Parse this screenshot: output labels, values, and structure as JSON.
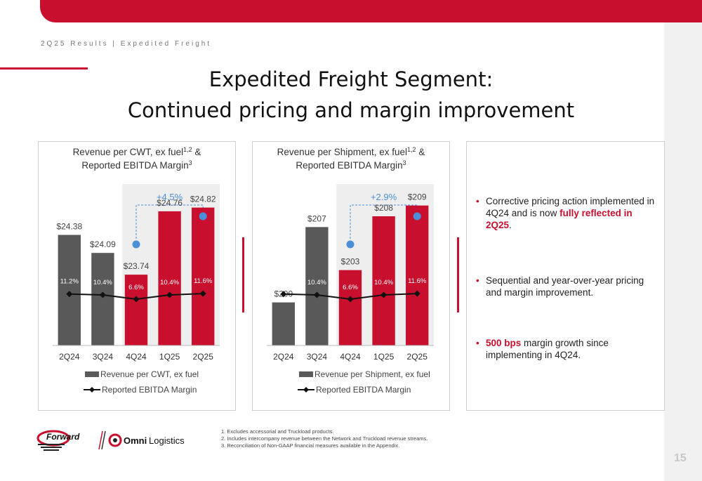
{
  "header": {
    "breadcrumb": "2Q25 Results | Expedited Freight",
    "title_line1": "Expedited Freight Segment:",
    "title_line2": "Continued pricing and margin improvement"
  },
  "colors": {
    "brand_red": "#c8102e",
    "bar_gray": "#595959",
    "highlight_blue": "#4a90d9",
    "shade": "#eeeeee"
  },
  "chart_data": [
    {
      "type": "bar",
      "title_line1": "Revenue per CWT, ex fuel",
      "title_line1_sup": "1,2",
      "title_line1_tail": " &",
      "title_line2": "Reported EBITDA Margin",
      "title_line2_sup": "3",
      "categories": [
        "2Q24",
        "3Q24",
        "4Q24",
        "1Q25",
        "2Q25"
      ],
      "series": [
        {
          "name": "Revenue per CWT, ex fuel",
          "kind": "bar",
          "values": [
            24.38,
            24.09,
            23.74,
            24.76,
            24.82
          ],
          "labels": [
            "$24.38",
            "$24.09",
            "$23.74",
            "$24.76",
            "$24.82"
          ],
          "colors": [
            "#595959",
            "#595959",
            "#c8102e",
            "#c8102e",
            "#c8102e"
          ]
        },
        {
          "name": "Reported EBITDA Margin",
          "kind": "line",
          "values": [
            11.2,
            10.4,
            6.6,
            10.4,
            11.6
          ],
          "labels": [
            "11.2%",
            "10.4%",
            "6.6%",
            "10.4%",
            "11.6%"
          ]
        }
      ],
      "annotation": "+4.5%",
      "ylim": [
        22.6,
        25.2
      ],
      "margin_ylim": [
        -35,
        110
      ],
      "bar_gap": 0.15
    },
    {
      "type": "bar",
      "title_line1": "Revenue per Shipment, ex fuel",
      "title_line1_sup": "1,2",
      "title_line1_tail": " &",
      "title_line2": "Reported EBITDA Margin",
      "title_line2_sup": "3",
      "categories": [
        "2Q24",
        "3Q24",
        "4Q24",
        "1Q25",
        "2Q25"
      ],
      "series": [
        {
          "name": "Revenue per Shipment, ex fuel",
          "kind": "bar",
          "values": [
            200,
            207,
            203,
            208,
            209
          ],
          "labels": [
            "$200",
            "$207",
            "$203",
            "$208",
            "$209"
          ],
          "colors": [
            "#595959",
            "#595959",
            "#c8102e",
            "#c8102e",
            "#c8102e"
          ]
        },
        {
          "name": "Reported EBITDA Margin",
          "kind": "line",
          "values": [
            11.2,
            10.4,
            6.6,
            10.4,
            11.6
          ],
          "labels": [
            "11.2%",
            "10.4%",
            "6.6%",
            "10.4%",
            "11.6%"
          ]
        }
      ],
      "annotation": "+2.9%",
      "ylim": [
        196,
        211
      ],
      "margin_ylim": [
        -35,
        110
      ],
      "bar_gap": 0.15
    }
  ],
  "bullets": [
    {
      "pre": "Corrective pricing action implemented in 4Q24 and is now ",
      "highlight": "fully reflected in 2Q25",
      "post": "."
    },
    {
      "pre": "Sequential and year-over-year pricing and margin improvement.",
      "highlight": "",
      "post": ""
    },
    {
      "pre": "",
      "highlight": "500 bps",
      "post": " margin growth since implementing in 4Q24."
    }
  ],
  "logos": {
    "forward": "Forward",
    "omni": "Omni",
    "logistics": "Logistics"
  },
  "footnotes": [
    "1.  Excludes accessorial and Truckload products.",
    "2.  Includes intercompany revenue between the Network and Truckload revenue streams.",
    "3.  Reconciliation of Non-GAAP financial measures available in the Appendix."
  ],
  "page_number": "15"
}
